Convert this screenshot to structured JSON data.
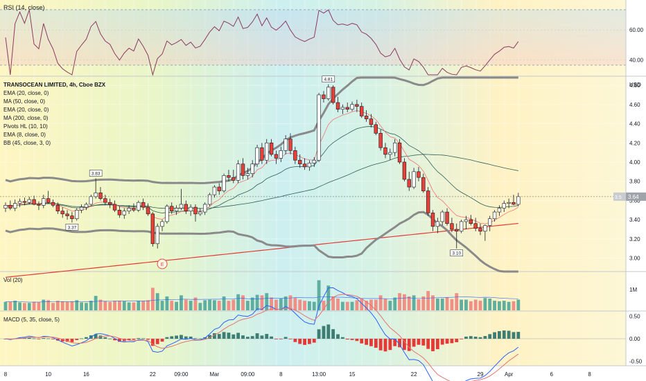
{
  "rsi_pane": {
    "title": "RSI (14, close)",
    "ticks": [
      {
        "v": 60,
        "label": "60.00"
      },
      {
        "v": 40,
        "label": "40.00"
      }
    ],
    "ylim": [
      30,
      80
    ],
    "color": "#8b3a62"
  },
  "price_pane": {
    "title": "TRANSOCEAN LIMITED, 4h, Cboe BZX",
    "unit_label": "USD",
    "indicators": [
      "EMA (20, close, 0)",
      "MA (50, close, 0)",
      "EMA (20, close, 0)",
      "MA (200, close, 0)",
      "Pivots HL (10, 10)",
      "EMA (8, close, 0)",
      "BB (45, close, 3, 0)"
    ],
    "ticks": [
      "4.80",
      "4.60",
      "4.40",
      "4.20",
      "4.00",
      "3.80",
      "3.60",
      "3.40",
      "3.20",
      "3.00"
    ],
    "ylim": [
      2.86,
      4.88
    ],
    "last_price_label": "3.64",
    "last_price_prefix": "3.5",
    "last_price": 3.64,
    "pivot_labels": [
      {
        "text": "3.83",
        "price": 3.83,
        "side": "high",
        "idx": 19
      },
      {
        "text": "3.37",
        "price": 3.37,
        "side": "low",
        "idx": 14
      },
      {
        "text": "4.81",
        "price": 4.81,
        "side": "high",
        "idx": 68
      },
      {
        "text": "3.10",
        "price": 3.1,
        "side": "low",
        "idx": 95
      }
    ],
    "earnings_marker": "E",
    "colors": {
      "up": "#ffffff",
      "down": "#e8413a",
      "ema8": "#f07474",
      "ema20": "#2e5e58",
      "ma50": "#2e5e58",
      "ma200": "#e53935",
      "bb": "#8a8a8a"
    }
  },
  "volume_pane": {
    "title": "Vol (20)",
    "ticks": [
      {
        "v": 1,
        "label": "1M"
      }
    ],
    "up_color": "#5fae9f",
    "down_color": "#ef8f86"
  },
  "macd_pane": {
    "title": "MACD (5, 35, close, 5)",
    "ticks": [
      {
        "v": 0.5,
        "label": "0.50"
      },
      {
        "v": 0,
        "label": "0.00"
      },
      {
        "v": -0.5,
        "label": "-0.50"
      }
    ],
    "ylim": [
      -0.6,
      0.6
    ]
  },
  "time_axis": {
    "labels": [
      {
        "text": "8",
        "idx": 0
      },
      {
        "text": "10",
        "idx": 9
      },
      {
        "text": "16",
        "idx": 17
      },
      {
        "text": "22",
        "idx": 31
      },
      {
        "text": "09:00",
        "idx": 37
      },
      {
        "text": "Mar",
        "idx": 44
      },
      {
        "text": "09:00",
        "idx": 51
      },
      {
        "text": "8",
        "idx": 58
      },
      {
        "text": "13:00",
        "idx": 66
      },
      {
        "text": "15",
        "idx": 73
      },
      {
        "text": "22",
        "idx": 86
      },
      {
        "text": "29",
        "idx": 100
      },
      {
        "text": "Apr",
        "idx": 106
      },
      {
        "text": "6",
        "idx": 115
      },
      {
        "text": "8",
        "idx": 123
      }
    ]
  },
  "chart_data": {
    "type": "candlestick",
    "title": "TRANSOCEAN LIMITED, 4h, Cboe BZX",
    "candles": [
      {
        "o": 3.52,
        "h": 3.58,
        "l": 3.48,
        "c": 3.55
      },
      {
        "o": 3.55,
        "h": 3.6,
        "l": 3.5,
        "c": 3.52
      },
      {
        "o": 3.52,
        "h": 3.61,
        "l": 3.49,
        "c": 3.57
      },
      {
        "o": 3.57,
        "h": 3.62,
        "l": 3.53,
        "c": 3.59
      },
      {
        "o": 3.59,
        "h": 3.63,
        "l": 3.55,
        "c": 3.58
      },
      {
        "o": 3.58,
        "h": 3.64,
        "l": 3.56,
        "c": 3.61
      },
      {
        "o": 3.61,
        "h": 3.65,
        "l": 3.55,
        "c": 3.56
      },
      {
        "o": 3.56,
        "h": 3.59,
        "l": 3.5,
        "c": 3.55
      },
      {
        "o": 3.55,
        "h": 3.66,
        "l": 3.52,
        "c": 3.62
      },
      {
        "o": 3.62,
        "h": 3.7,
        "l": 3.57,
        "c": 3.58
      },
      {
        "o": 3.58,
        "h": 3.61,
        "l": 3.53,
        "c": 3.55
      },
      {
        "o": 3.55,
        "h": 3.58,
        "l": 3.46,
        "c": 3.49
      },
      {
        "o": 3.49,
        "h": 3.53,
        "l": 3.42,
        "c": 3.46
      },
      {
        "o": 3.46,
        "h": 3.5,
        "l": 3.4,
        "c": 3.44
      },
      {
        "o": 3.44,
        "h": 3.48,
        "l": 3.37,
        "c": 3.41
      },
      {
        "o": 3.41,
        "h": 3.52,
        "l": 3.39,
        "c": 3.5
      },
      {
        "o": 3.5,
        "h": 3.56,
        "l": 3.47,
        "c": 3.53
      },
      {
        "o": 3.53,
        "h": 3.58,
        "l": 3.5,
        "c": 3.56
      },
      {
        "o": 3.56,
        "h": 3.66,
        "l": 3.54,
        "c": 3.64
      },
      {
        "o": 3.64,
        "h": 3.83,
        "l": 3.62,
        "c": 3.68
      },
      {
        "o": 3.68,
        "h": 3.74,
        "l": 3.6,
        "c": 3.62
      },
      {
        "o": 3.62,
        "h": 3.66,
        "l": 3.55,
        "c": 3.58
      },
      {
        "o": 3.58,
        "h": 3.62,
        "l": 3.52,
        "c": 3.56
      },
      {
        "o": 3.56,
        "h": 3.6,
        "l": 3.48,
        "c": 3.5
      },
      {
        "o": 3.5,
        "h": 3.54,
        "l": 3.42,
        "c": 3.45
      },
      {
        "o": 3.45,
        "h": 3.52,
        "l": 3.41,
        "c": 3.49
      },
      {
        "o": 3.49,
        "h": 3.55,
        "l": 3.46,
        "c": 3.52
      },
      {
        "o": 3.52,
        "h": 3.57,
        "l": 3.48,
        "c": 3.5
      },
      {
        "o": 3.5,
        "h": 3.6,
        "l": 3.48,
        "c": 3.58
      },
      {
        "o": 3.58,
        "h": 3.62,
        "l": 3.5,
        "c": 3.53
      },
      {
        "o": 3.53,
        "h": 3.57,
        "l": 3.44,
        "c": 3.46
      },
      {
        "o": 3.46,
        "h": 3.48,
        "l": 3.12,
        "c": 3.15
      },
      {
        "o": 3.15,
        "h": 3.36,
        "l": 3.1,
        "c": 3.33
      },
      {
        "o": 3.33,
        "h": 3.4,
        "l": 3.28,
        "c": 3.38
      },
      {
        "o": 3.38,
        "h": 3.56,
        "l": 3.36,
        "c": 3.54
      },
      {
        "o": 3.54,
        "h": 3.58,
        "l": 3.46,
        "c": 3.49
      },
      {
        "o": 3.49,
        "h": 3.55,
        "l": 3.45,
        "c": 3.52
      },
      {
        "o": 3.52,
        "h": 3.72,
        "l": 3.5,
        "c": 3.56
      },
      {
        "o": 3.56,
        "h": 3.6,
        "l": 3.46,
        "c": 3.49
      },
      {
        "o": 3.49,
        "h": 3.56,
        "l": 3.44,
        "c": 3.53
      },
      {
        "o": 3.53,
        "h": 3.56,
        "l": 3.38,
        "c": 3.46
      },
      {
        "o": 3.46,
        "h": 3.52,
        "l": 3.44,
        "c": 3.48
      },
      {
        "o": 3.48,
        "h": 3.58,
        "l": 3.45,
        "c": 3.56
      },
      {
        "o": 3.56,
        "h": 3.68,
        "l": 3.54,
        "c": 3.66
      },
      {
        "o": 3.66,
        "h": 3.76,
        "l": 3.63,
        "c": 3.74
      },
      {
        "o": 3.74,
        "h": 3.78,
        "l": 3.66,
        "c": 3.7
      },
      {
        "o": 3.7,
        "h": 3.88,
        "l": 3.68,
        "c": 3.86
      },
      {
        "o": 3.86,
        "h": 3.92,
        "l": 3.8,
        "c": 3.84
      },
      {
        "o": 3.84,
        "h": 3.92,
        "l": 3.78,
        "c": 3.81
      },
      {
        "o": 3.81,
        "h": 4.02,
        "l": 3.78,
        "c": 3.98
      },
      {
        "o": 3.98,
        "h": 4.04,
        "l": 3.82,
        "c": 3.86
      },
      {
        "o": 3.86,
        "h": 3.94,
        "l": 3.82,
        "c": 3.88
      },
      {
        "o": 3.88,
        "h": 4.02,
        "l": 3.84,
        "c": 3.98
      },
      {
        "o": 3.98,
        "h": 4.18,
        "l": 3.95,
        "c": 4.15
      },
      {
        "o": 4.15,
        "h": 4.2,
        "l": 3.98,
        "c": 4.02
      },
      {
        "o": 4.02,
        "h": 4.24,
        "l": 3.98,
        "c": 4.2
      },
      {
        "o": 4.2,
        "h": 4.24,
        "l": 4.06,
        "c": 4.08
      },
      {
        "o": 4.08,
        "h": 4.12,
        "l": 3.98,
        "c": 4.04
      },
      {
        "o": 4.04,
        "h": 4.16,
        "l": 4.0,
        "c": 4.12
      },
      {
        "o": 4.12,
        "h": 4.28,
        "l": 4.08,
        "c": 4.24
      },
      {
        "o": 4.24,
        "h": 4.3,
        "l": 4.08,
        "c": 4.12
      },
      {
        "o": 4.12,
        "h": 4.16,
        "l": 3.98,
        "c": 4.02
      },
      {
        "o": 4.02,
        "h": 4.08,
        "l": 3.94,
        "c": 3.98
      },
      {
        "o": 3.98,
        "h": 4.04,
        "l": 3.92,
        "c": 3.95
      },
      {
        "o": 3.95,
        "h": 4.02,
        "l": 3.91,
        "c": 3.99
      },
      {
        "o": 3.99,
        "h": 4.05,
        "l": 3.95,
        "c": 4.02
      },
      {
        "o": 4.02,
        "h": 4.72,
        "l": 4.0,
        "c": 4.7
      },
      {
        "o": 4.7,
        "h": 4.74,
        "l": 4.62,
        "c": 4.66
      },
      {
        "o": 4.66,
        "h": 4.81,
        "l": 4.64,
        "c": 4.78
      },
      {
        "o": 4.78,
        "h": 4.8,
        "l": 4.6,
        "c": 4.62
      },
      {
        "o": 4.62,
        "h": 4.68,
        "l": 4.52,
        "c": 4.55
      },
      {
        "o": 4.55,
        "h": 4.6,
        "l": 4.5,
        "c": 4.57
      },
      {
        "o": 4.57,
        "h": 4.62,
        "l": 4.52,
        "c": 4.55
      },
      {
        "o": 4.55,
        "h": 4.63,
        "l": 4.53,
        "c": 4.6
      },
      {
        "o": 4.6,
        "h": 4.65,
        "l": 4.52,
        "c": 4.58
      },
      {
        "o": 4.58,
        "h": 4.62,
        "l": 4.46,
        "c": 4.48
      },
      {
        "o": 4.48,
        "h": 4.54,
        "l": 4.42,
        "c": 4.45
      },
      {
        "o": 4.45,
        "h": 4.5,
        "l": 4.36,
        "c": 4.39
      },
      {
        "o": 4.39,
        "h": 4.42,
        "l": 4.28,
        "c": 4.3
      },
      {
        "o": 4.3,
        "h": 4.34,
        "l": 4.12,
        "c": 4.15
      },
      {
        "o": 4.15,
        "h": 4.2,
        "l": 4.04,
        "c": 4.08
      },
      {
        "o": 4.08,
        "h": 4.14,
        "l": 4.02,
        "c": 4.1
      },
      {
        "o": 4.1,
        "h": 4.24,
        "l": 4.06,
        "c": 4.2
      },
      {
        "o": 4.2,
        "h": 4.24,
        "l": 3.98,
        "c": 4.0
      },
      {
        "o": 4.0,
        "h": 4.04,
        "l": 3.8,
        "c": 3.82
      },
      {
        "o": 3.82,
        "h": 3.9,
        "l": 3.7,
        "c": 3.74
      },
      {
        "o": 3.74,
        "h": 3.94,
        "l": 3.72,
        "c": 3.9
      },
      {
        "o": 3.9,
        "h": 3.95,
        "l": 3.8,
        "c": 3.84
      },
      {
        "o": 3.84,
        "h": 3.88,
        "l": 3.68,
        "c": 3.7
      },
      {
        "o": 3.7,
        "h": 3.74,
        "l": 3.44,
        "c": 3.47
      },
      {
        "o": 3.47,
        "h": 3.5,
        "l": 3.28,
        "c": 3.33
      },
      {
        "o": 3.33,
        "h": 3.42,
        "l": 3.26,
        "c": 3.38
      },
      {
        "o": 3.38,
        "h": 3.5,
        "l": 3.34,
        "c": 3.48
      },
      {
        "o": 3.48,
        "h": 3.52,
        "l": 3.34,
        "c": 3.36
      },
      {
        "o": 3.36,
        "h": 3.42,
        "l": 3.27,
        "c": 3.3
      },
      {
        "o": 3.3,
        "h": 3.36,
        "l": 3.1,
        "c": 3.28
      },
      {
        "o": 3.28,
        "h": 3.4,
        "l": 3.26,
        "c": 3.38
      },
      {
        "o": 3.38,
        "h": 3.44,
        "l": 3.3,
        "c": 3.4
      },
      {
        "o": 3.4,
        "h": 3.45,
        "l": 3.34,
        "c": 3.36
      },
      {
        "o": 3.36,
        "h": 3.42,
        "l": 3.28,
        "c": 3.31
      },
      {
        "o": 3.31,
        "h": 3.36,
        "l": 3.24,
        "c": 3.28
      },
      {
        "o": 3.28,
        "h": 3.35,
        "l": 3.18,
        "c": 3.34
      },
      {
        "o": 3.34,
        "h": 3.44,
        "l": 3.28,
        "c": 3.41
      },
      {
        "o": 3.41,
        "h": 3.5,
        "l": 3.38,
        "c": 3.48
      },
      {
        "o": 3.48,
        "h": 3.55,
        "l": 3.44,
        "c": 3.52
      },
      {
        "o": 3.52,
        "h": 3.6,
        "l": 3.48,
        "c": 3.57
      },
      {
        "o": 3.57,
        "h": 3.62,
        "l": 3.52,
        "c": 3.58
      },
      {
        "o": 3.58,
        "h": 3.66,
        "l": 3.55,
        "c": 3.56
      },
      {
        "o": 3.56,
        "h": 3.68,
        "l": 3.54,
        "c": 3.64
      }
    ]
  }
}
